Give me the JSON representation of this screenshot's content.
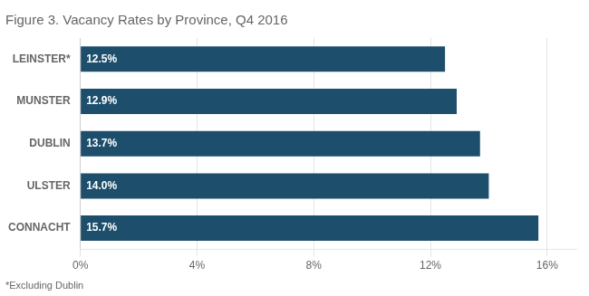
{
  "chart_data": {
    "type": "bar",
    "orientation": "horizontal",
    "title": "Figure 3. Vacancy Rates by Province, Q4 2016",
    "footnote": "*Excluding Dublin",
    "categories": [
      "LEINSTER*",
      "MUNSTER",
      "DUBLIN",
      "ULSTER",
      "CONNACHT"
    ],
    "values": [
      12.5,
      12.9,
      13.7,
      14.0,
      15.7
    ],
    "value_labels": [
      "12.5%",
      "12.9%",
      "13.7%",
      "14.0%",
      "15.7%"
    ],
    "data_labels": true,
    "color": "#1D4E6B",
    "xlim": [
      0,
      17
    ],
    "xticks": [
      {
        "value": 0,
        "label": "0%"
      },
      {
        "value": 4,
        "label": "4%"
      },
      {
        "value": 8,
        "label": "8%"
      },
      {
        "value": 12,
        "label": "12%"
      },
      {
        "value": 16,
        "label": "16%"
      }
    ],
    "grid": true
  }
}
